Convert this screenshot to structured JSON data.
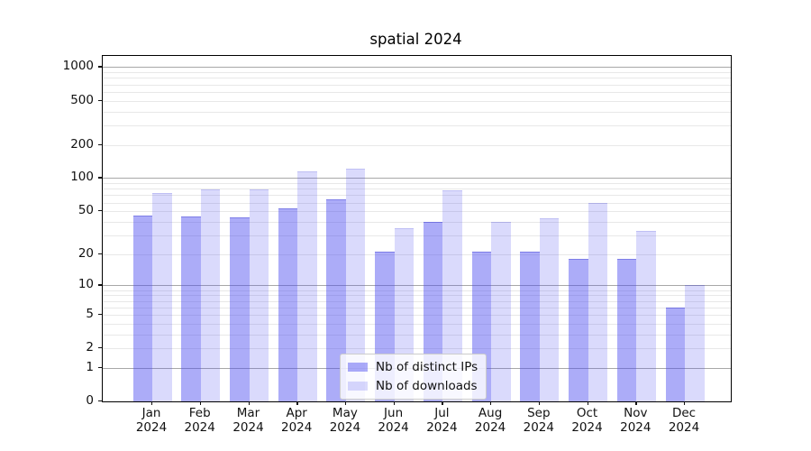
{
  "chart_data": {
    "type": "bar",
    "title": "spatial 2024",
    "categories": [
      "Jan 2024",
      "Feb 2024",
      "Mar 2024",
      "Apr 2024",
      "May 2024",
      "Jun 2024",
      "Jul 2024",
      "Aug 2024",
      "Sep 2024",
      "Oct 2024",
      "Nov 2024",
      "Dec 2024"
    ],
    "series": [
      {
        "name": "Nb of distinct IPs",
        "color": "rgba(70,70,240,0.45)",
        "edge_color": "rgba(40,40,200,0.35)",
        "values": [
          46,
          45,
          44,
          53,
          64,
          21,
          40,
          21,
          21,
          18,
          18,
          6
        ]
      },
      {
        "name": "Nb of downloads",
        "color": "rgba(70,70,240,0.2)",
        "edge_color": "rgba(40,40,200,0.15)",
        "values": [
          73,
          79,
          79,
          115,
          121,
          35,
          77,
          40,
          43,
          60,
          33,
          10
        ]
      }
    ],
    "xlabel": "",
    "ylabel": "",
    "y_axis": {
      "scale": "log10(1+v)",
      "tick_labels": [
        "1000",
        "500",
        "200",
        "100",
        "50",
        "20",
        "10",
        "5",
        "2",
        "1",
        "0"
      ],
      "tick_values": [
        1000,
        500,
        200,
        100,
        50,
        20,
        10,
        5,
        2,
        1,
        0
      ],
      "major_grid_values": [
        1,
        10,
        100,
        1000
      ],
      "ylim": [
        0,
        1260
      ]
    },
    "grid": "horizontal",
    "legend_position": "lower center",
    "colors": {
      "major_grid": "#a8a8a8",
      "minor_grid": "#e8e8e8",
      "spine": "#000000",
      "text": "#111111",
      "background": "#ffffff"
    }
  }
}
